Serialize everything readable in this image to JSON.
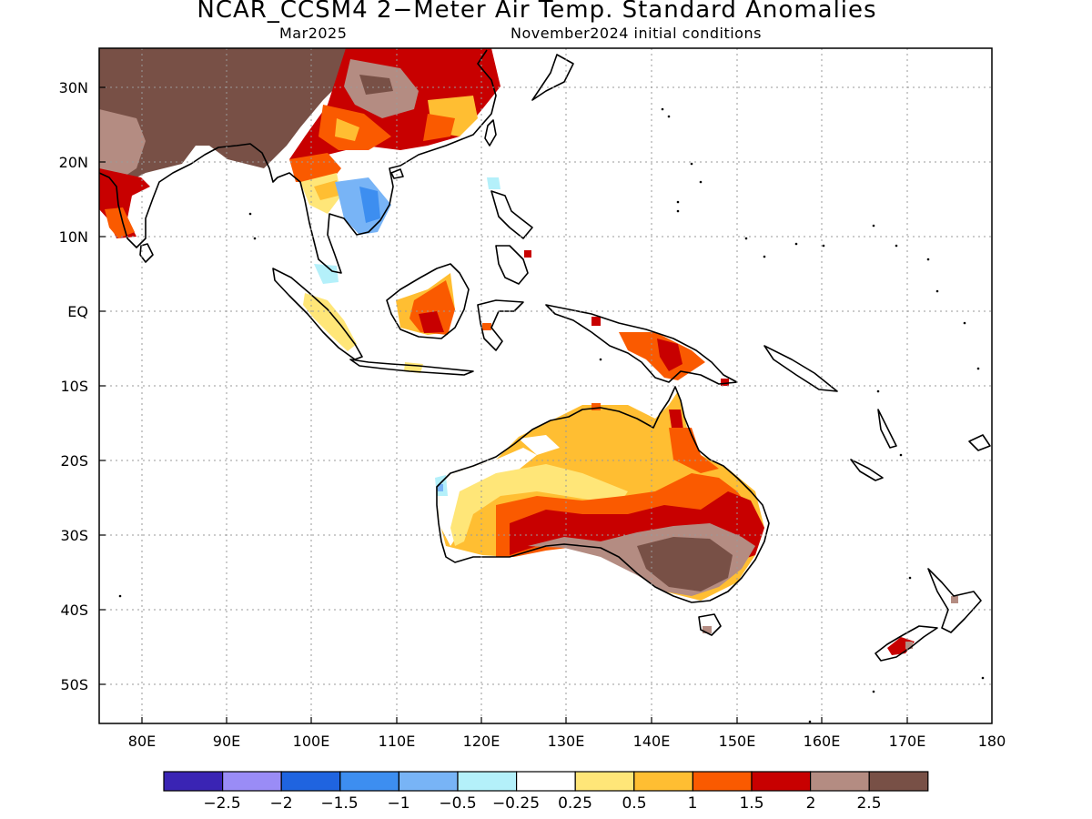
{
  "title": "NCAR_CCSM4 2−Meter Air Temp. Standard Anomalies",
  "subtitle_left": "Mar2025",
  "subtitle_right": "November2024 initial conditions",
  "y_ticks": [
    "30N",
    "20N",
    "10N",
    "EQ",
    "10S",
    "20S",
    "30S",
    "40S",
    "50S"
  ],
  "x_ticks": [
    "80E",
    "90E",
    "100E",
    "110E",
    "120E",
    "130E",
    "140E",
    "150E",
    "160E",
    "170E",
    "180"
  ],
  "colors": {
    "lt_m2_5": "#3a24b4",
    "m2_5_m2": "#9a8cf6",
    "m2_m1_5": "#1f64e0",
    "m1_5_m1": "#3d8ef0",
    "m1_m0_5": "#78b4f6",
    "m0_5_m0_25": "#b4f0fa",
    "neutral": "#ffffff",
    "p0_25_0_5": "#ffe678",
    "p0_5_1": "#ffbe32",
    "p1_1_5": "#fa5a00",
    "p1_5_2": "#c80000",
    "p2_2_5": "#b48c82",
    "gt_2_5": "#785046"
  },
  "legend": {
    "swatches": [
      "#3a24b4",
      "#9a8cf6",
      "#1f64e0",
      "#3d8ef0",
      "#78b4f6",
      "#b4f0fa",
      "#ffffff",
      "#ffe678",
      "#ffbe32",
      "#fa5a00",
      "#c80000",
      "#b48c82",
      "#785046"
    ],
    "labels": [
      "−2.5",
      "−2",
      "−1.5",
      "−1",
      "−0.5",
      "−0.25",
      "0.25",
      "0.5",
      "1",
      "1.5",
      "2",
      "2.5"
    ]
  }
}
